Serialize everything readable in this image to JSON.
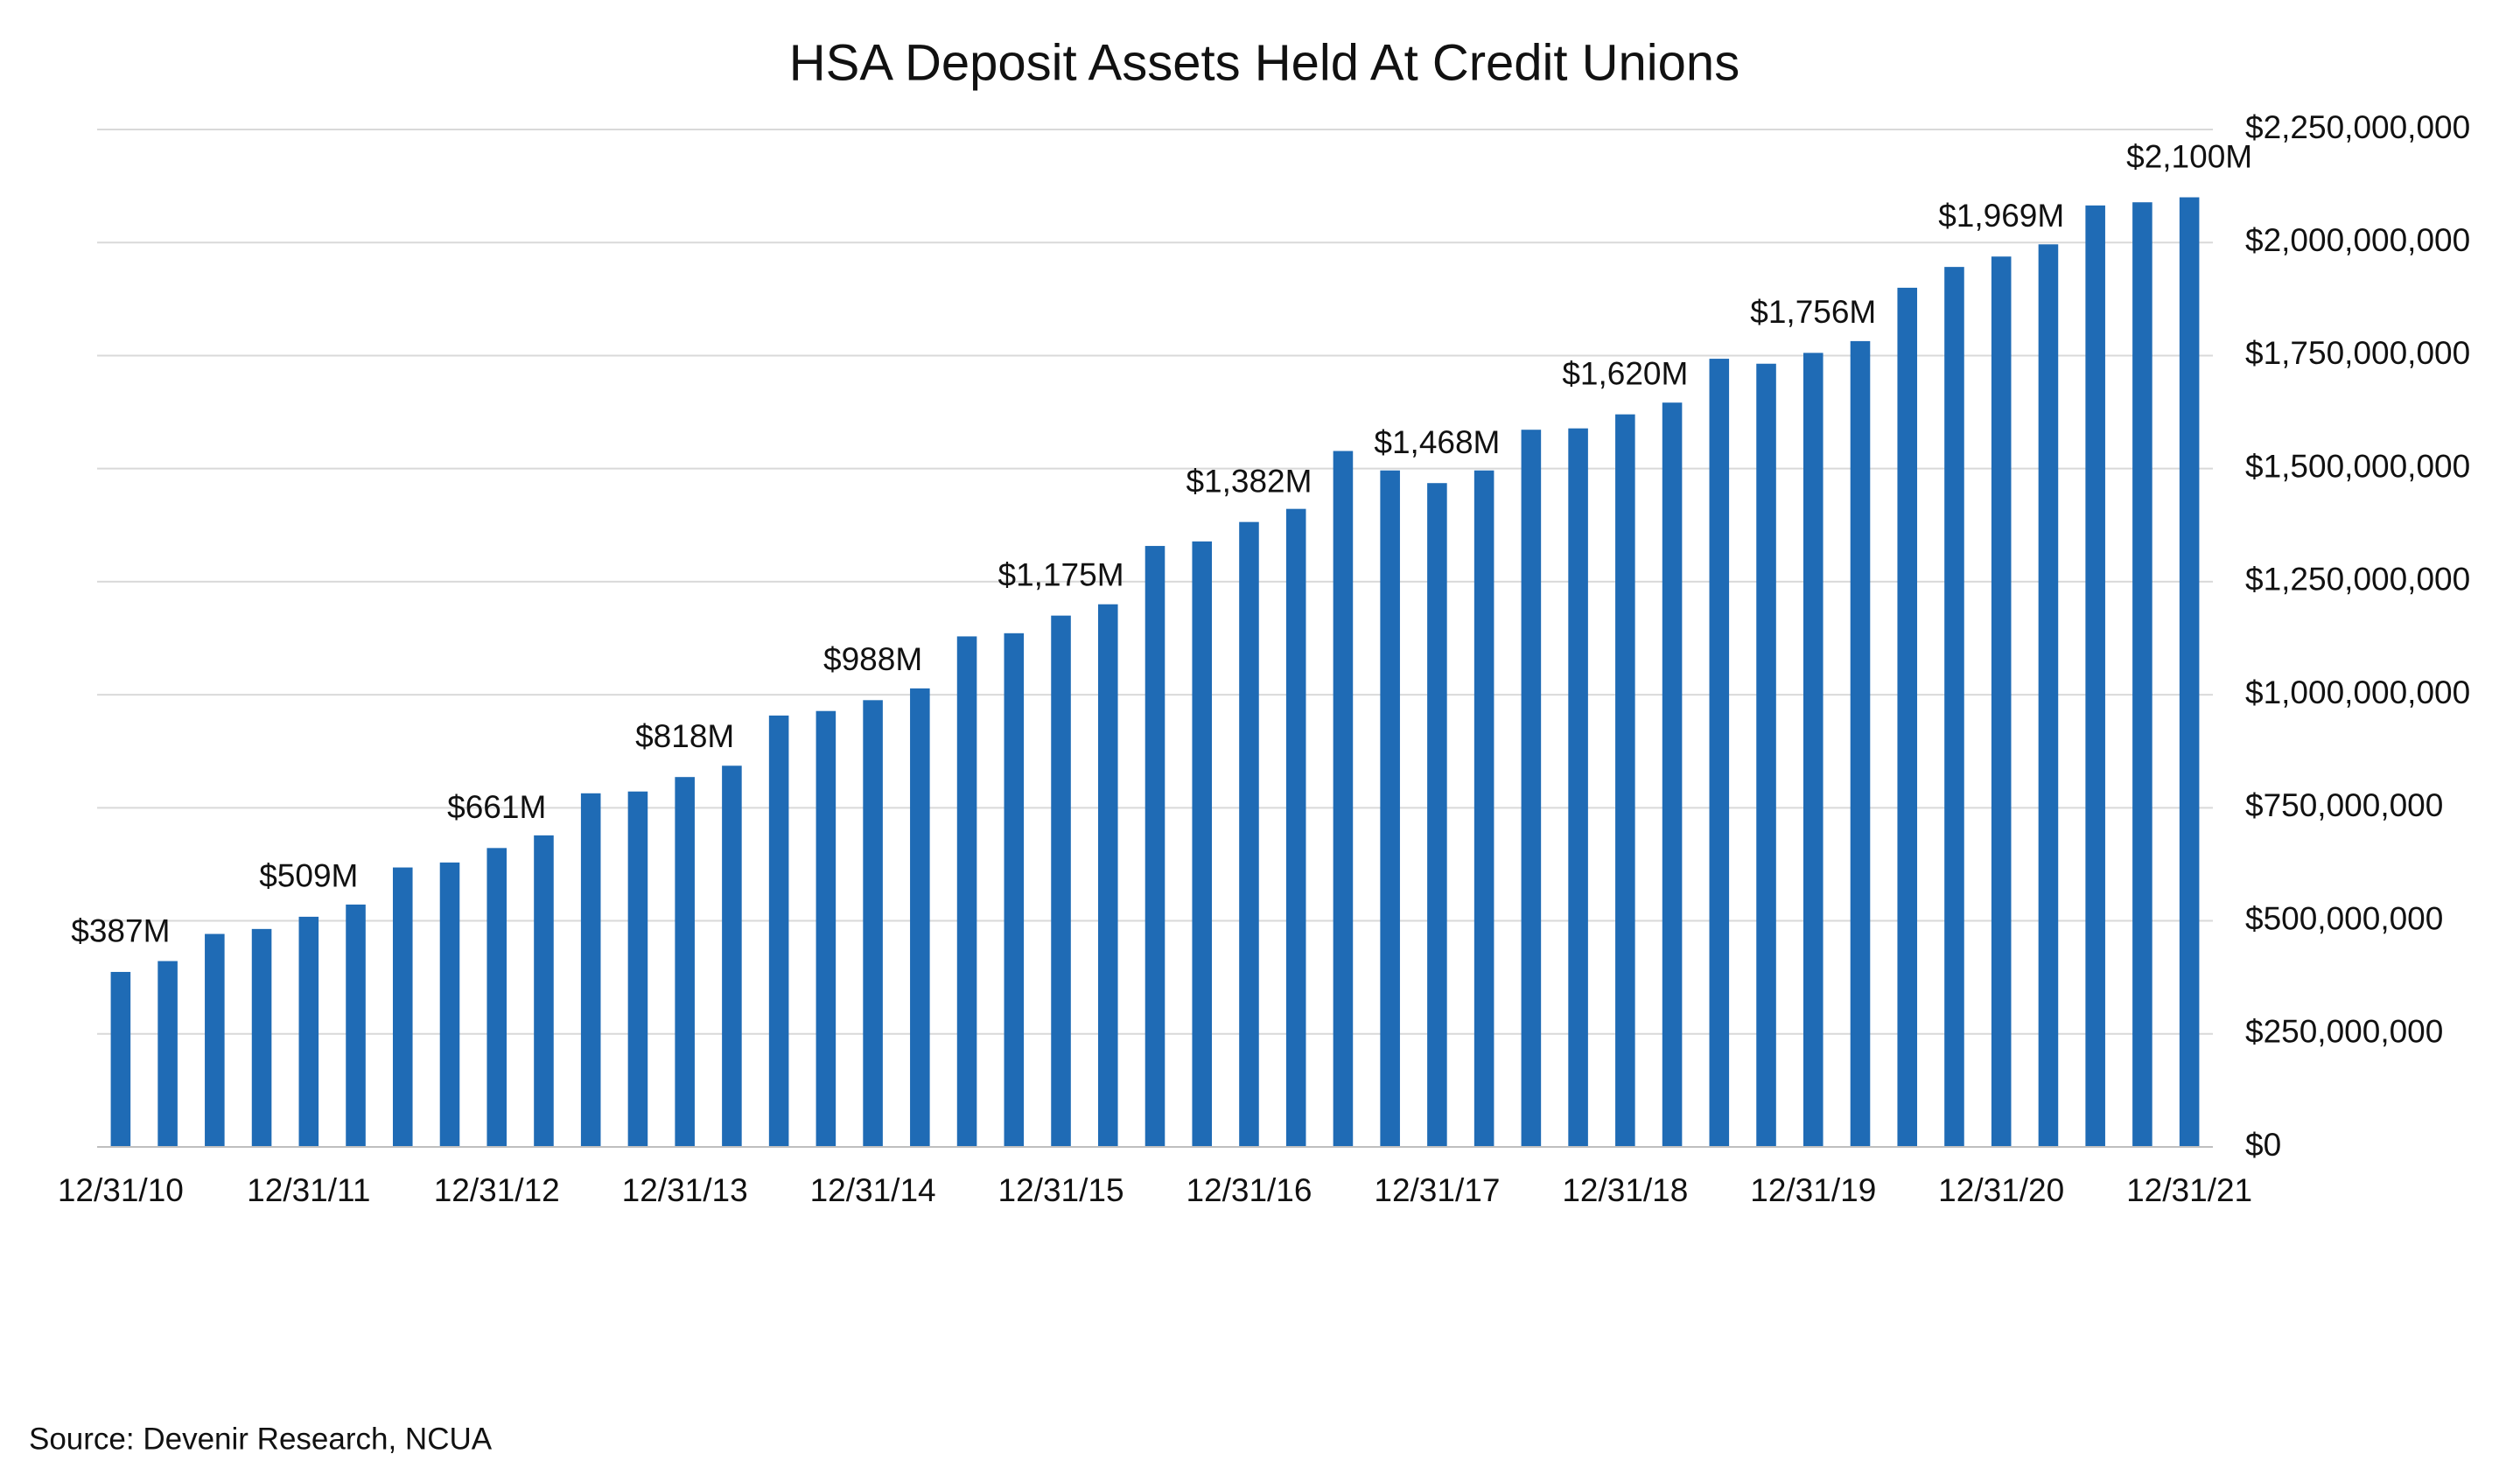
{
  "chart_data": {
    "type": "bar",
    "title": "HSA Deposit Assets Held At Credit Unions",
    "source": "Source: Devenir Research, NCUA",
    "color": "#1f6bb5",
    "grid": true,
    "y_axis_side": "right",
    "categories": [
      "12/31/10",
      null,
      null,
      null,
      "12/31/11",
      null,
      null,
      null,
      "12/31/12",
      null,
      null,
      null,
      "12/31/13",
      null,
      null,
      null,
      "12/31/14",
      null,
      null,
      null,
      "12/31/15",
      null,
      null,
      null,
      "12/31/16",
      null,
      null,
      null,
      "12/31/17",
      null,
      null,
      null,
      "12/31/18",
      null,
      null,
      null,
      "12/31/19",
      null,
      null,
      null,
      "12/31/20",
      null,
      null,
      null,
      "12/31/21"
    ],
    "values": [
      387000000,
      411000000,
      471000000,
      482000000,
      509000000,
      536000000,
      618000000,
      629000000,
      661000000,
      689000000,
      782000000,
      786000000,
      818000000,
      843000000,
      954000000,
      964000000,
      988000000,
      1014000000,
      1129000000,
      1136000000,
      1175000000,
      1200000000,
      1329000000,
      1339000000,
      1382000000,
      1411000000,
      1539000000,
      1496000000,
      1468000000,
      1496000000,
      1586000000,
      1589000000,
      1620000000,
      1646000000,
      1743000000,
      1732000000,
      1756000000,
      1782000000,
      1900000000,
      1946000000,
      1969000000,
      1996000000,
      2082000000,
      2089000000,
      2100000000
    ],
    "value_labels": [
      "$387M",
      null,
      null,
      null,
      "$509M",
      null,
      null,
      null,
      "$661M",
      null,
      null,
      null,
      "$818M",
      null,
      null,
      null,
      "$988M",
      null,
      null,
      null,
      "$1,175M",
      null,
      null,
      null,
      "$1,382M",
      null,
      null,
      null,
      "$1,468M",
      null,
      null,
      null,
      "$1,620M",
      null,
      null,
      null,
      "$1,756M",
      null,
      null,
      null,
      "$1,969M",
      null,
      null,
      null,
      "$2,100M"
    ],
    "ylim": [
      0,
      2250000000
    ],
    "yticks": [
      {
        "value": 0,
        "label": "$0"
      },
      {
        "value": 250000000,
        "label": "$250,000,000"
      },
      {
        "value": 500000000,
        "label": "$500,000,000"
      },
      {
        "value": 750000000,
        "label": "$750,000,000"
      },
      {
        "value": 1000000000,
        "label": "$1,000,000,000"
      },
      {
        "value": 1250000000,
        "label": "$1,250,000,000"
      },
      {
        "value": 1500000000,
        "label": "$1,500,000,000"
      },
      {
        "value": 1750000000,
        "label": "$1,750,000,000"
      },
      {
        "value": 2000000000,
        "label": "$2,000,000,000"
      },
      {
        "value": 2250000000,
        "label": "$2,250,000,000"
      }
    ]
  }
}
